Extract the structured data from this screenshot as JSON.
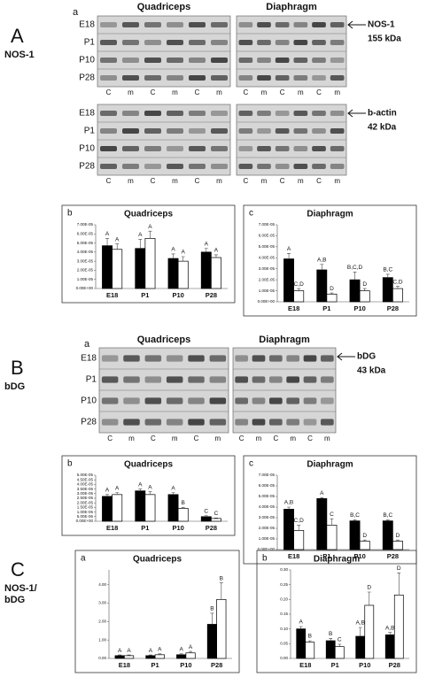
{
  "panels": [
    {
      "letter": "A",
      "label": [
        "NOS-1"
      ],
      "blot_letter": "a",
      "blot_headers": [
        "Quadriceps",
        "Diaphragm"
      ],
      "blots": [
        {
          "rows": [
            "E18",
            "P1",
            "P10",
            "P28"
          ],
          "lanes": [
            "C",
            "m",
            "C",
            "m",
            "C",
            "m",
            "C",
            "m",
            "C",
            "m",
            "C",
            "m"
          ],
          "marker": "NOS-1",
          "size": "155 kDa"
        },
        {
          "rows": [
            "E18",
            "P1",
            "P10",
            "P28"
          ],
          "lanes": [
            "C",
            "m",
            "C",
            "m",
            "C",
            "m",
            "C",
            "m",
            "C",
            "m",
            "C",
            "m"
          ],
          "marker": "b-actin",
          "size": "42 kDa"
        }
      ]
    },
    {
      "letter": "B",
      "label": [
        "bDG"
      ],
      "blot_letter": "a",
      "blot_headers": [
        "Quadriceps",
        "Diaphragm"
      ],
      "blots": [
        {
          "rows": [
            "E18",
            "P1",
            "P10",
            "P28"
          ],
          "lanes": [
            "C",
            "m",
            "C",
            "m",
            "C",
            "m",
            "C",
            "m",
            "C",
            "m",
            "C",
            "m"
          ],
          "marker": "bDG",
          "size": "43 kDa"
        }
      ]
    },
    {
      "letter": "C",
      "label": [
        "NOS-1/",
        "bDG"
      ]
    }
  ],
  "chart_data": [
    {
      "type": "bar",
      "label": "b",
      "title": "Quadriceps",
      "categories": [
        "E18",
        "P1",
        "P10",
        "P28"
      ],
      "ylim": [
        0,
        7e-05
      ],
      "yticks": [
        {
          "value": 0,
          "label": "0.00E+00"
        },
        {
          "value": 1e-05,
          "label": "1.00E-05"
        },
        {
          "value": 2e-05,
          "label": "2.00E-05"
        },
        {
          "value": 3e-05,
          "label": "3.00E-05"
        },
        {
          "value": 4e-05,
          "label": "4.00E-05"
        },
        {
          "value": 5e-05,
          "label": "5.00E-05"
        },
        {
          "value": 6e-05,
          "label": "6.00E-05"
        },
        {
          "value": 7e-05,
          "label": "7.00E-05"
        }
      ],
      "series": [
        {
          "color": "#000000",
          "values": [
            4.7e-05,
            4.4e-05,
            3.3e-05,
            4e-05
          ],
          "errors": [
            8e-06,
            1e-05,
            5e-06,
            4e-06
          ],
          "letters": [
            "A",
            "A",
            "A",
            "A"
          ]
        },
        {
          "color": "#ffffff",
          "values": [
            4.3e-05,
            5.5e-05,
            3e-05,
            3.4e-05
          ],
          "errors": [
            6e-06,
            8e-06,
            5e-06,
            3e-06
          ],
          "letters": [
            "A",
            "A",
            "A",
            "A"
          ]
        }
      ]
    },
    {
      "type": "bar",
      "label": "c",
      "title": "Diaphragm",
      "categories": [
        "E18",
        "P1",
        "P10",
        "P28"
      ],
      "ylim": [
        0,
        7e-05
      ],
      "yticks": [
        {
          "value": 0,
          "label": "0.00E+00"
        },
        {
          "value": 1e-05,
          "label": "1.00E-05"
        },
        {
          "value": 2e-05,
          "label": "2.00E-05"
        },
        {
          "value": 3e-05,
          "label": "3.00E-05"
        },
        {
          "value": 4e-05,
          "label": "4.00E-05"
        },
        {
          "value": 5e-05,
          "label": "5.00E-05"
        },
        {
          "value": 6e-05,
          "label": "6.00E-05"
        },
        {
          "value": 7e-05,
          "label": "7.00E-05"
        }
      ],
      "series": [
        {
          "color": "#000000",
          "values": [
            3.9e-05,
            2.9e-05,
            2e-05,
            2.2e-05
          ],
          "errors": [
            5e-06,
            5e-06,
            7e-06,
            3e-06
          ],
          "letters": [
            "A",
            "A,B",
            "B,C,D",
            "B,C"
          ]
        },
        {
          "color": "#ffffff",
          "values": [
            1e-05,
            7e-06,
            1e-05,
            1.2e-05
          ],
          "errors": [
            2e-06,
            1e-06,
            2e-06,
            2e-06
          ],
          "letters": [
            "C,D",
            "D",
            "D",
            "C,D"
          ]
        }
      ]
    },
    {
      "type": "bar",
      "label": "b",
      "title": "Quadriceps",
      "categories": [
        "E18",
        "P1",
        "P10",
        "P28"
      ],
      "ylim": [
        0,
        5e-05
      ],
      "yticks": [
        {
          "value": 0,
          "label": "0.00E+00"
        },
        {
          "value": 5e-06,
          "label": "5.00E-06"
        },
        {
          "value": 1e-05,
          "label": "1.00E-05"
        },
        {
          "value": 1.5e-05,
          "label": "1.50E-05"
        },
        {
          "value": 2e-05,
          "label": "2.00E-05"
        },
        {
          "value": 2.5e-05,
          "label": "2.50E-05"
        },
        {
          "value": 3e-05,
          "label": "3.00E-05"
        },
        {
          "value": 3.5e-05,
          "label": "3.50E-05"
        },
        {
          "value": 4e-05,
          "label": "4.00E-05"
        },
        {
          "value": 4.5e-05,
          "label": "4.50E-05"
        },
        {
          "value": 5e-05,
          "label": "5.00E-05"
        }
      ],
      "series": [
        {
          "color": "#000000",
          "values": [
            2.7e-05,
            3.3e-05,
            2.9e-05,
            5e-06
          ],
          "errors": [
            2e-06,
            2e-06,
            2e-06,
            1e-06
          ],
          "letters": [
            "A",
            "A",
            "A",
            "C"
          ]
        },
        {
          "color": "#ffffff",
          "values": [
            2.9e-05,
            2.9e-05,
            1.4e-05,
            3e-06
          ],
          "errors": [
            2e-06,
            3e-06,
            1e-06,
            5e-07
          ],
          "letters": [
            "A",
            "A",
            "B",
            "C"
          ]
        }
      ]
    },
    {
      "type": "bar",
      "label": "c",
      "title": "Diaphragm",
      "categories": [
        "E18",
        "P1",
        "P10",
        "P28"
      ],
      "ylim": [
        0,
        7e-05
      ],
      "yticks": [
        {
          "value": 0,
          "label": "0.00E+00"
        },
        {
          "value": 1e-05,
          "label": "1.00E-05"
        },
        {
          "value": 2e-05,
          "label": "2.00E-05"
        },
        {
          "value": 3e-05,
          "label": "3.00E-05"
        },
        {
          "value": 4e-05,
          "label": "4.00E-05"
        },
        {
          "value": 5e-05,
          "label": "5.00E-05"
        },
        {
          "value": 6e-05,
          "label": "6.00E-05"
        },
        {
          "value": 7e-05,
          "label": "7.00E-05"
        }
      ],
      "series": [
        {
          "color": "#000000",
          "values": [
            3.8e-05,
            4.8e-05,
            2.7e-05,
            2.7e-05
          ],
          "errors": [
            2e-06,
            1e-06,
            1e-06,
            1e-06
          ],
          "letters": [
            "A,B",
            "A",
            "B,C",
            "B,C"
          ]
        },
        {
          "color": "#ffffff",
          "values": [
            1.8e-05,
            2.3e-05,
            8e-06,
            8e-06
          ],
          "errors": [
            5e-06,
            6e-06,
            1e-06,
            1e-06
          ],
          "letters": [
            "C,D",
            "C",
            "D",
            "D"
          ]
        }
      ]
    },
    {
      "type": "bar",
      "label": "a",
      "title": "Quadriceps",
      "categories": [
        "E18",
        "P1",
        "P10",
        "P28"
      ],
      "ylim": [
        0,
        4.8
      ],
      "yticks": [
        {
          "value": 0,
          "label": "0.00"
        },
        {
          "value": 1,
          "label": "1.00"
        },
        {
          "value": 2,
          "label": "2.00"
        },
        {
          "value": 3,
          "label": "3.00"
        },
        {
          "value": 4,
          "label": "4.00"
        }
      ],
      "series": [
        {
          "color": "#000000",
          "values": [
            0.15,
            0.15,
            0.2,
            1.85
          ],
          "errors": [
            0.04,
            0.04,
            0.05,
            0.6
          ],
          "letters": [
            "A",
            "A",
            "A",
            "B"
          ]
        },
        {
          "color": "#ffffff",
          "values": [
            0.15,
            0.2,
            0.3,
            3.2
          ],
          "errors": [
            0.04,
            0.05,
            0.08,
            0.9
          ],
          "letters": [
            "A",
            "A",
            "A",
            "B"
          ]
        }
      ]
    },
    {
      "type": "bar",
      "label": "b",
      "title": "Diaphragm",
      "categories": [
        "E18",
        "P1",
        "P10",
        "P28"
      ],
      "ylim": [
        0,
        0.3
      ],
      "yticks": [
        {
          "value": 0,
          "label": "0.00"
        },
        {
          "value": 0.05,
          "label": "0.05"
        },
        {
          "value": 0.1,
          "label": "0.10"
        },
        {
          "value": 0.15,
          "label": "0.15"
        },
        {
          "value": 0.2,
          "label": "0.20"
        },
        {
          "value": 0.25,
          "label": "0.25"
        },
        {
          "value": 0.3,
          "label": "0.30"
        }
      ],
      "series": [
        {
          "color": "#000000",
          "values": [
            0.1,
            0.06,
            0.075,
            0.08
          ],
          "errors": [
            0.008,
            0.008,
            0.03,
            0.008
          ],
          "letters": [
            "A",
            "B",
            "A,B",
            "A,B"
          ]
        },
        {
          "color": "#ffffff",
          "values": [
            0.055,
            0.04,
            0.18,
            0.215
          ],
          "errors": [
            0.005,
            0.008,
            0.045,
            0.075
          ],
          "letters": [
            "B",
            "C",
            "D",
            "D"
          ]
        }
      ]
    }
  ]
}
